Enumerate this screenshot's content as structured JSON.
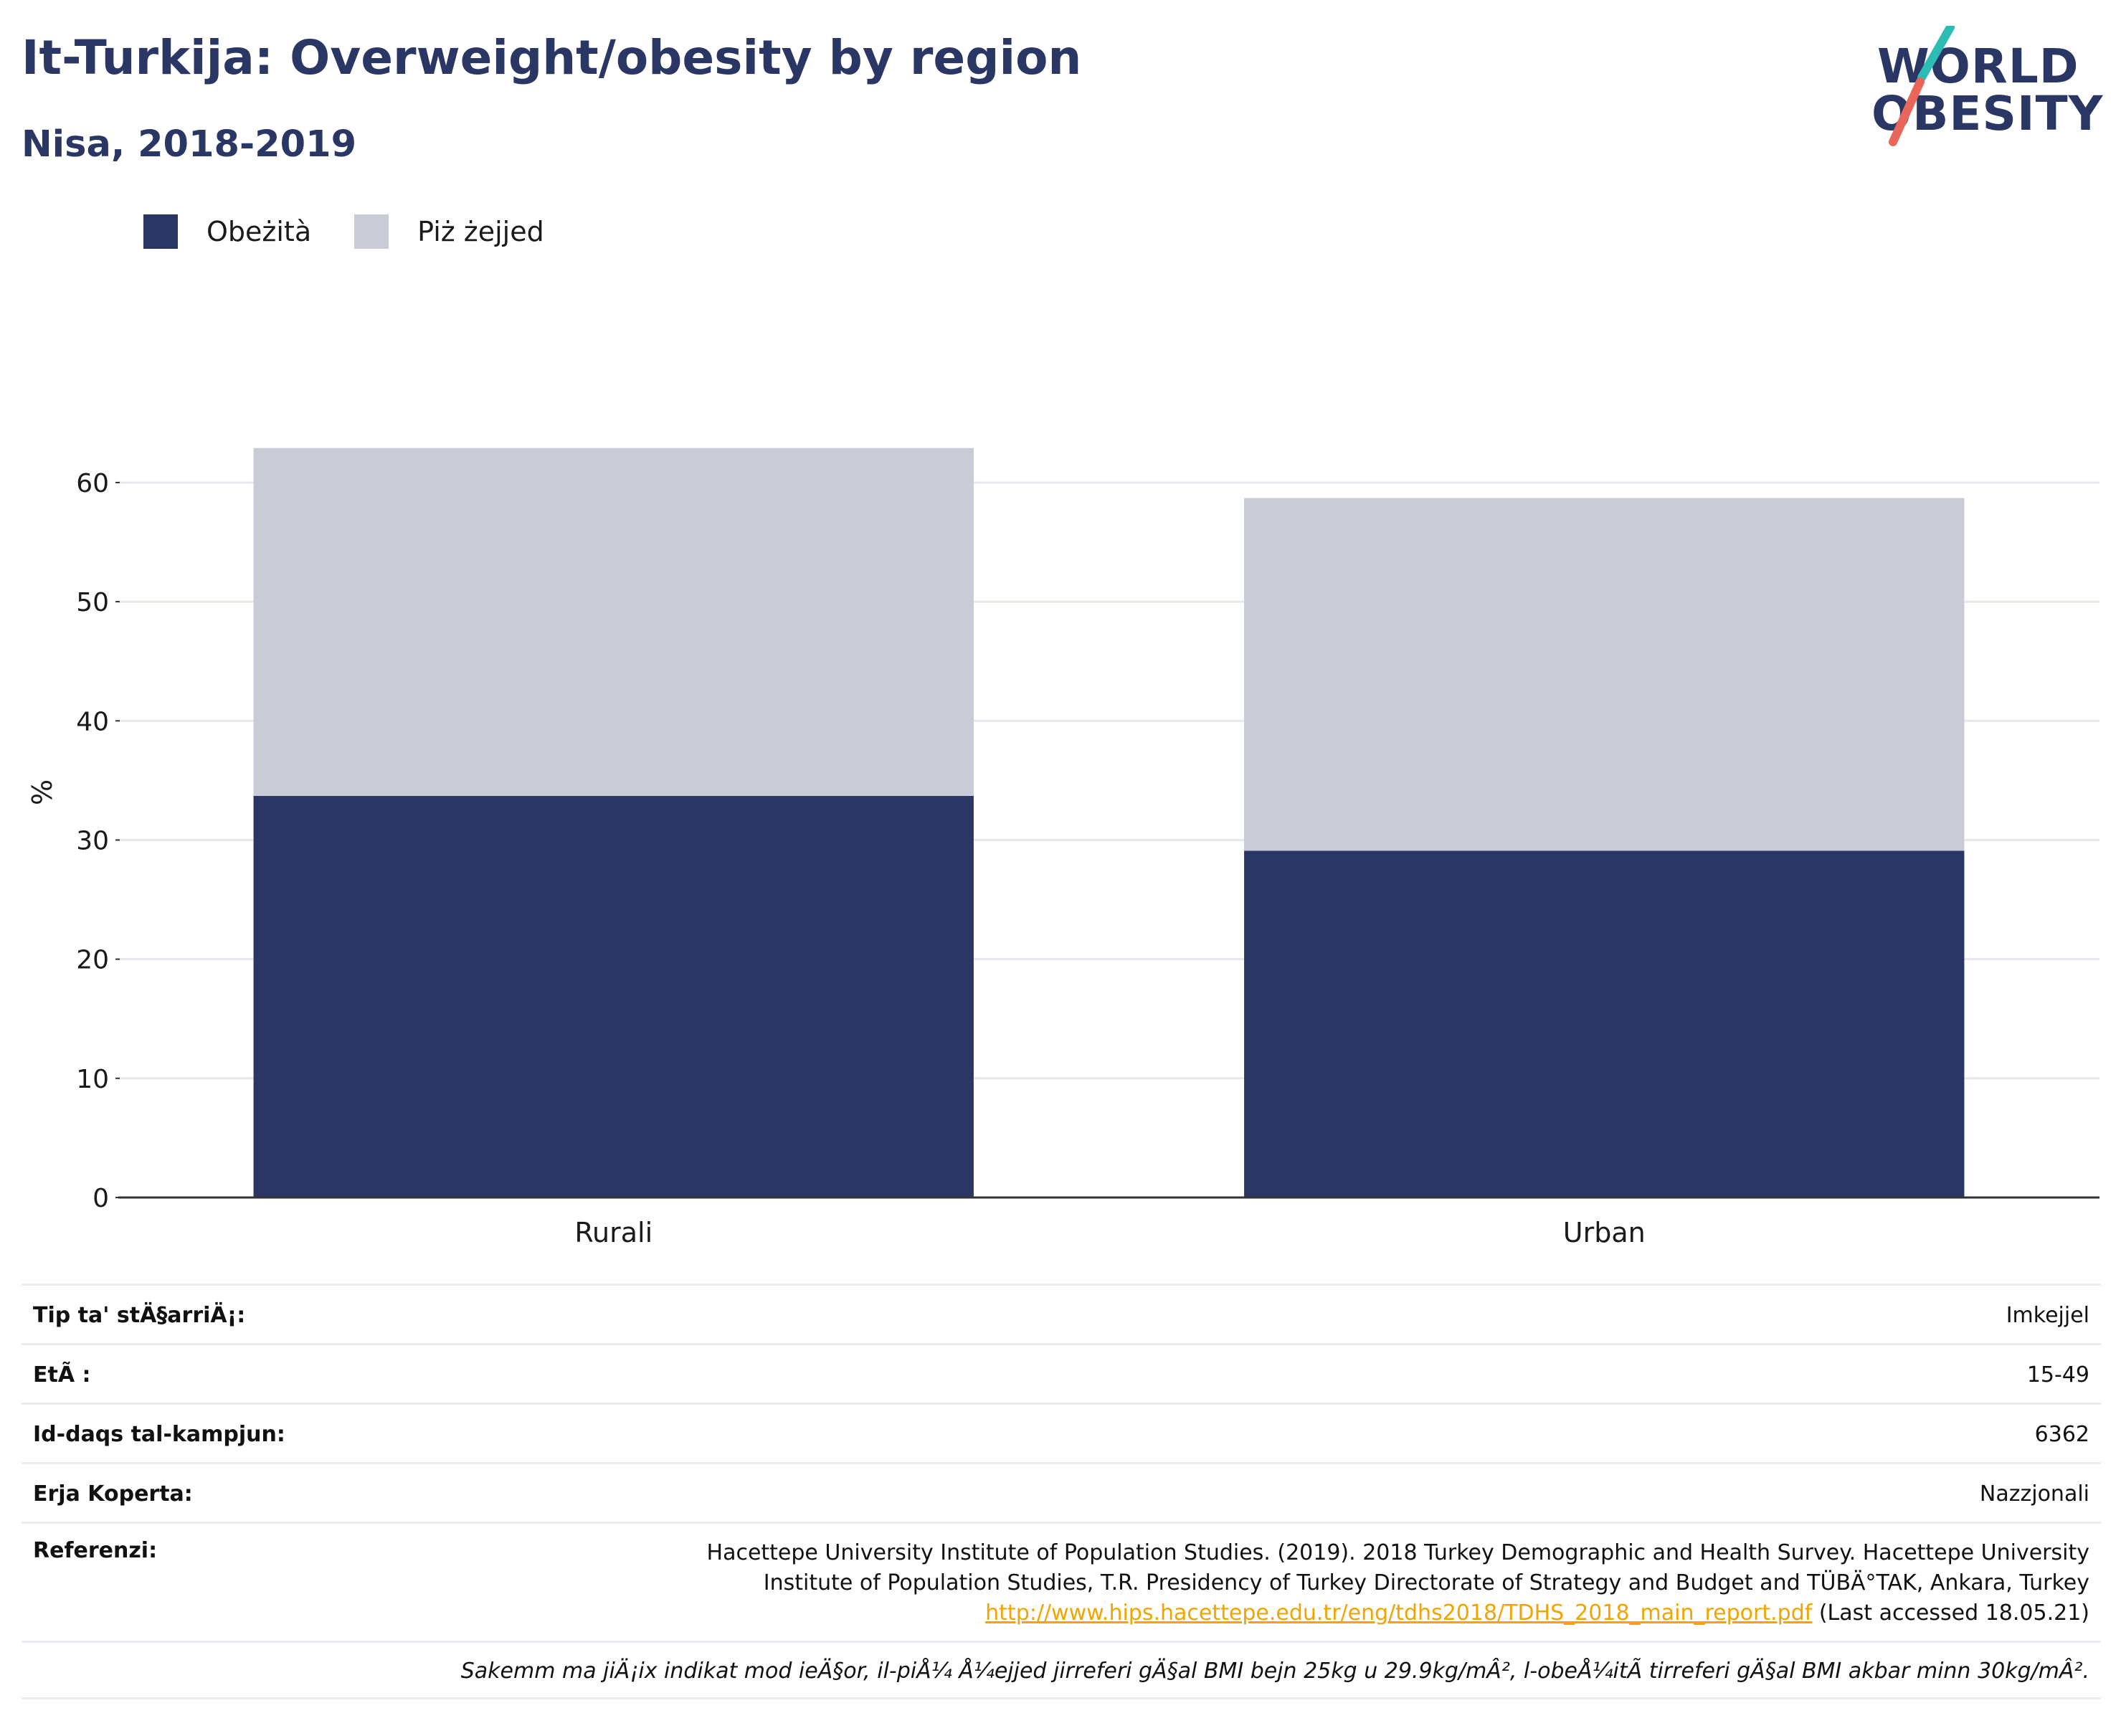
{
  "header": {
    "title": "It-Turkija: Overweight/obesity by region",
    "subtitle": "Nisa, 2018-2019"
  },
  "logo": {
    "line1": "WORLD",
    "line2": "OBESITY",
    "slash_colors": [
      "#2bbcb4",
      "#e8675a"
    ]
  },
  "legend": {
    "items": [
      {
        "label": "Obeżità",
        "color": "#2a3764"
      },
      {
        "label": "Piż żejjed",
        "color": "#c9cbd6"
      }
    ]
  },
  "chart_data": {
    "type": "bar",
    "stacked": true,
    "categories": [
      "Rurali",
      "Urban"
    ],
    "series": [
      {
        "name": "Obeżità",
        "values": [
          33.7,
          29.1
        ],
        "color": "#2a3764"
      },
      {
        "name": "Piż żejjed",
        "values": [
          29.2,
          29.6
        ],
        "color": "#c9cbd6"
      }
    ],
    "xlabel": "",
    "ylabel": "%",
    "ylim": [
      0,
      68
    ],
    "yticks": [
      0,
      10,
      20,
      30,
      40,
      50,
      60
    ],
    "grid": true,
    "legend_position": "top-left"
  },
  "info": {
    "rows": [
      {
        "label": "Tip ta' stÄ§arriÄ¡:",
        "value": "Imkejjel"
      },
      {
        "label": "EtÃ :",
        "value": "15-49"
      },
      {
        "label": "Id-daqs tal-kampjun:",
        "value": "6362"
      },
      {
        "label": "Erja Koperta:",
        "value": "Nazzjonali"
      }
    ],
    "reference": {
      "label": "Referenzi:",
      "line1": "Hacettepe University Institute of Population Studies. (2019). 2018 Turkey Demographic and Health Survey. Hacettepe University",
      "line2": "Institute of Population Studies, T.R. Presidency of Turkey Directorate of Strategy and Budget and TÜBÄ°TAK, Ankara, Turkey",
      "link": "http://www.hips.hacettepe.edu.tr/eng/tdhs2018/TDHS_2018_main_report.pdf",
      "accessed": " (Last accessed 18.05.21)"
    },
    "note": "Sakemm ma jiÄ¡ix indikat mod ieÄ§or, il-piÅ¼ Å¼ejjed jirreferi gÄ§al BMI bejn 25kg u 29.9kg/mÂ², l-obeÅ¼itÃ  tirreferi gÄ§al BMI akbar minn 30kg/mÂ²."
  }
}
